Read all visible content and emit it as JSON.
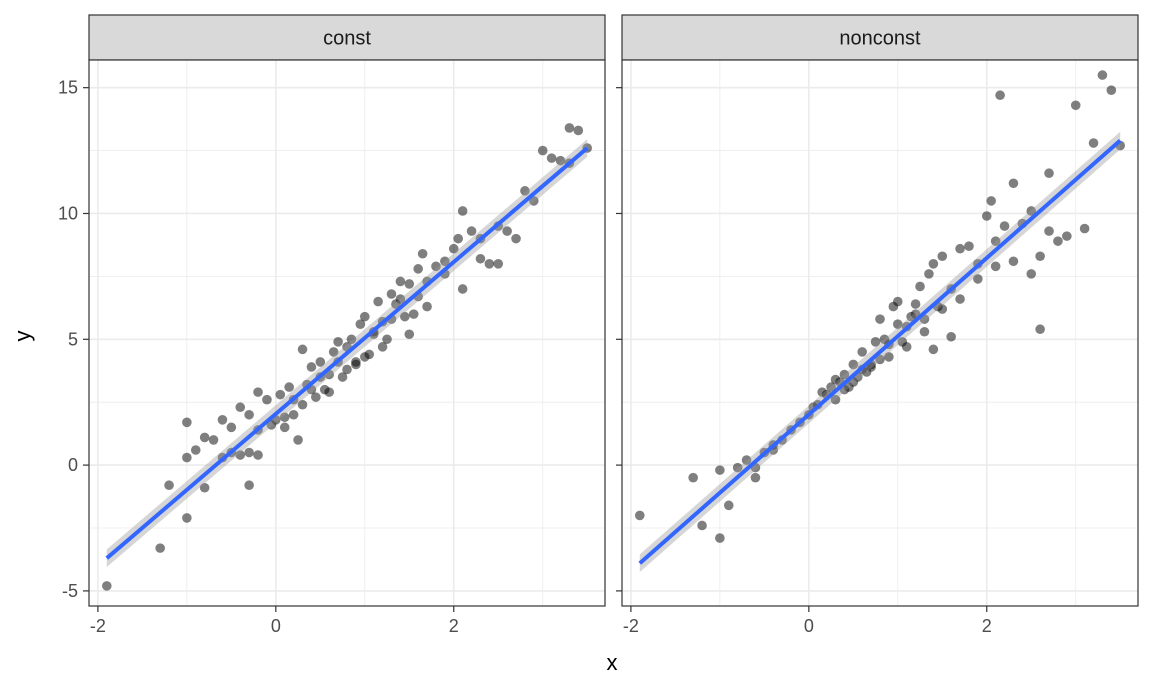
{
  "chart_data": {
    "type": "scatter",
    "xlabel": "x",
    "ylabel": "y",
    "xlim": [
      -2.1,
      3.7
    ],
    "ylim": [
      -5.6,
      16.1
    ],
    "x_ticks": [
      -2,
      0,
      2
    ],
    "y_ticks": [
      -5,
      0,
      5,
      10,
      15
    ],
    "x_tick_labels": [
      "-2",
      "0",
      "2"
    ],
    "y_tick_labels": [
      "-5",
      "0",
      "5",
      "10",
      "15"
    ],
    "grid": true,
    "legend": "none",
    "colors": {
      "points": "#000000",
      "fit_line": "#3366FF",
      "ribbon": "#999999",
      "strip_fill": "#d9d9d9",
      "grid": "#ebebeb"
    },
    "panels": [
      {
        "strip": "const",
        "fit": {
          "x": [
            -1.9,
            3.5
          ],
          "y": [
            -3.7,
            12.6
          ],
          "ribbon_halfwidth": [
            0.35,
            0.35
          ]
        },
        "x": [
          -1.9,
          -1.3,
          -1.2,
          -1.0,
          -1.0,
          -0.9,
          -0.8,
          -0.7,
          -0.6,
          -0.6,
          -0.5,
          -0.5,
          -0.4,
          -0.4,
          -0.3,
          -0.3,
          -0.2,
          -0.2,
          -0.1,
          -0.05,
          0.0,
          0.05,
          0.1,
          0.15,
          0.2,
          0.25,
          0.3,
          0.35,
          0.4,
          0.45,
          0.5,
          0.55,
          0.6,
          0.65,
          0.7,
          0.75,
          0.8,
          0.85,
          0.9,
          0.95,
          1.0,
          1.05,
          1.1,
          1.15,
          1.2,
          1.25,
          1.3,
          1.35,
          1.4,
          1.45,
          1.5,
          1.55,
          1.6,
          1.65,
          1.7,
          1.8,
          1.9,
          2.0,
          2.05,
          2.1,
          2.2,
          2.3,
          2.4,
          2.5,
          2.6,
          2.7,
          2.8,
          3.0,
          3.1,
          3.2,
          3.3,
          3.4,
          3.5,
          -1.0,
          -0.8,
          -0.3,
          -0.2,
          0.1,
          0.3,
          0.5,
          0.7,
          0.9,
          1.1,
          1.3,
          1.5,
          1.7,
          1.9,
          2.1,
          2.3,
          2.5,
          2.9,
          3.3,
          0.8,
          1.0,
          1.2,
          0.6,
          0.4,
          1.4,
          1.6,
          0.2
        ],
        "y": [
          -4.8,
          -3.3,
          -0.8,
          -2.1,
          1.7,
          0.6,
          -0.9,
          1.0,
          0.3,
          1.8,
          0.5,
          1.5,
          0.4,
          2.3,
          2.0,
          0.5,
          2.9,
          1.4,
          2.6,
          1.6,
          1.8,
          2.8,
          1.9,
          3.1,
          2.6,
          1.0,
          4.6,
          3.2,
          3.9,
          2.7,
          4.1,
          3.0,
          3.6,
          4.5,
          4.9,
          3.5,
          4.7,
          5.0,
          4.1,
          5.6,
          5.9,
          4.4,
          5.3,
          6.5,
          4.7,
          5.0,
          6.8,
          6.4,
          7.3,
          5.9,
          7.2,
          6.0,
          7.8,
          8.4,
          7.3,
          7.9,
          8.1,
          8.6,
          9.0,
          10.1,
          9.3,
          9.0,
          8.0,
          9.5,
          9.3,
          9.0,
          10.9,
          12.5,
          12.2,
          12.1,
          13.4,
          13.3,
          12.6,
          0.3,
          1.1,
          -0.8,
          0.4,
          1.5,
          2.4,
          3.5,
          4.1,
          4.0,
          5.2,
          5.8,
          5.2,
          6.3,
          7.6,
          7.0,
          8.2,
          8.0,
          10.5,
          12.0,
          3.8,
          4.3,
          5.7,
          2.9,
          3.0,
          6.6,
          6.7,
          2.0
        ]
      },
      {
        "strip": "nonconst",
        "fit": {
          "x": [
            -1.9,
            3.5
          ],
          "y": [
            -3.9,
            12.9
          ],
          "ribbon_halfwidth": [
            0.35,
            0.35
          ]
        },
        "x": [
          -1.9,
          -1.3,
          -1.2,
          -1.0,
          -1.0,
          -0.9,
          -0.8,
          -0.7,
          -0.6,
          -0.5,
          -0.4,
          -0.3,
          -0.2,
          -0.1,
          0.0,
          0.05,
          0.1,
          0.15,
          0.2,
          0.25,
          0.3,
          0.35,
          0.4,
          0.45,
          0.5,
          0.55,
          0.6,
          0.65,
          0.7,
          0.75,
          0.8,
          0.85,
          0.9,
          0.95,
          1.0,
          1.05,
          1.1,
          1.15,
          1.2,
          1.25,
          1.3,
          1.35,
          1.4,
          1.45,
          1.5,
          1.6,
          1.7,
          1.8,
          1.9,
          2.0,
          2.05,
          2.1,
          2.2,
          2.3,
          2.4,
          2.5,
          2.6,
          2.7,
          2.8,
          3.0,
          3.1,
          3.2,
          3.3,
          3.4,
          3.5,
          -0.6,
          -0.4,
          0.3,
          0.5,
          0.7,
          0.9,
          1.1,
          1.3,
          1.5,
          1.7,
          1.9,
          2.1,
          2.3,
          2.5,
          2.7,
          2.9,
          1.0,
          0.8,
          0.6,
          1.2,
          1.4,
          1.6,
          0.4,
          2.15,
          2.6
        ],
        "y": [
          -2.0,
          -0.5,
          -2.4,
          -0.2,
          -2.9,
          -1.6,
          -0.1,
          0.2,
          -0.5,
          0.5,
          0.8,
          1.0,
          1.4,
          1.7,
          2.0,
          2.3,
          2.4,
          2.9,
          2.8,
          3.1,
          3.4,
          3.3,
          3.6,
          3.1,
          4.0,
          3.5,
          4.5,
          3.7,
          4.0,
          4.9,
          4.2,
          5.0,
          4.8,
          6.3,
          6.5,
          4.9,
          5.5,
          5.9,
          6.4,
          7.1,
          5.3,
          7.6,
          8.0,
          6.3,
          8.3,
          7.0,
          8.6,
          8.7,
          8.0,
          9.9,
          10.5,
          8.9,
          9.5,
          11.2,
          9.6,
          10.1,
          8.3,
          9.3,
          8.9,
          14.3,
          9.4,
          12.8,
          15.5,
          14.9,
          12.7,
          -0.1,
          0.6,
          2.6,
          3.3,
          3.9,
          4.3,
          4.7,
          5.8,
          6.2,
          6.6,
          7.4,
          7.9,
          8.1,
          7.6,
          11.6,
          9.1,
          5.6,
          5.8,
          3.8,
          6.0,
          4.6,
          5.1,
          3.0,
          14.7,
          5.4
        ]
      }
    ]
  }
}
